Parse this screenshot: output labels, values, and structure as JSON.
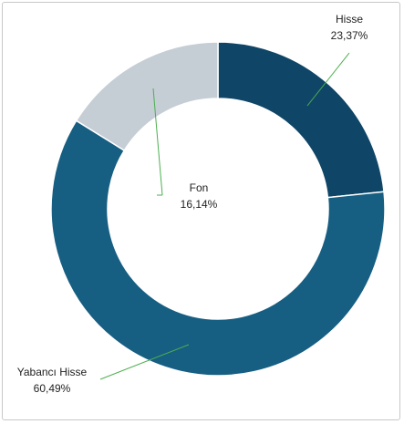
{
  "chart_data": {
    "type": "donut",
    "categories": [
      "Hisse",
      "Yabancı Hisse",
      "Fon"
    ],
    "values": [
      23.37,
      60.49,
      16.14
    ],
    "value_labels": [
      "23,37%",
      "60,49%",
      "16,14%"
    ],
    "colors": [
      "#0f4566",
      "#165e82",
      "#c5cdd5"
    ]
  }
}
